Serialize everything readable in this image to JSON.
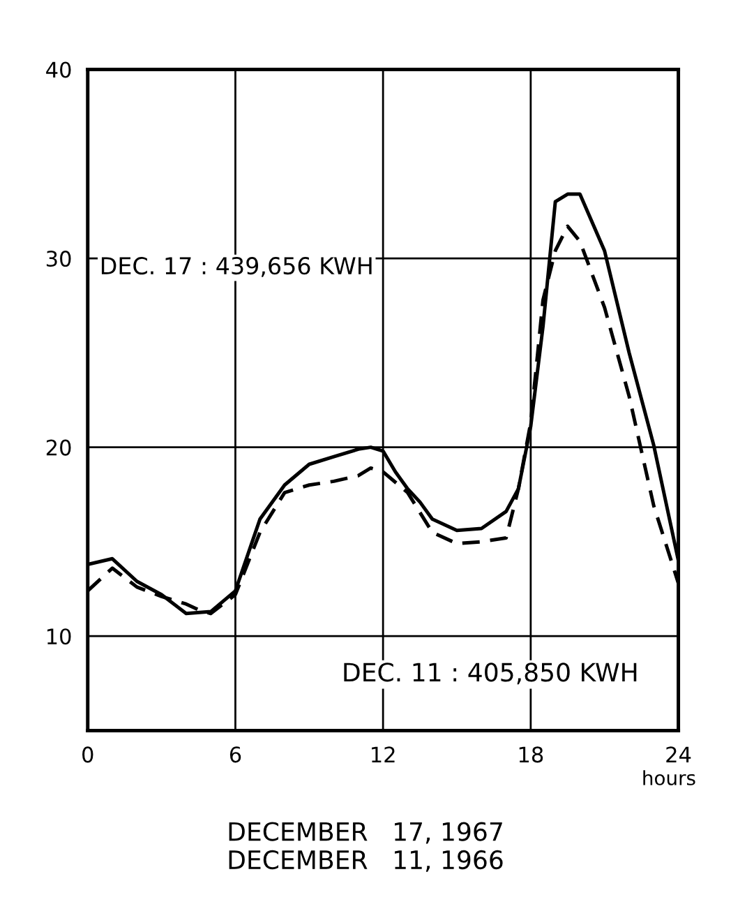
{
  "chart_data": {
    "type": "line",
    "xlabel": "hours",
    "xlim": [
      0,
      24
    ],
    "xticks": [
      0,
      6,
      12,
      18,
      24
    ],
    "ylim": [
      5,
      40
    ],
    "yticks": [
      10,
      20,
      30,
      40
    ],
    "grid": true,
    "marker": "none",
    "series": [
      {
        "color": "#000000",
        "line_style": "solid",
        "x": [
          0,
          1,
          2,
          3,
          4,
          5,
          6,
          7,
          8,
          9,
          10,
          11,
          11.5,
          12,
          12.5,
          13,
          13.5,
          14,
          15,
          16,
          17,
          17.5,
          18,
          18.5,
          19,
          19.5,
          20,
          21,
          22,
          23,
          24
        ],
        "values": [
          13.8,
          14.1,
          12.9,
          12.2,
          11.2,
          11.3,
          12.4,
          16.2,
          18.0,
          19.1,
          19.5,
          19.9,
          20.0,
          19.8,
          18.7,
          17.8,
          17.1,
          16.2,
          15.6,
          15.7,
          16.6,
          17.8,
          21.1,
          26.4,
          33.0,
          33.4,
          33.4,
          30.4,
          25.0,
          20.1,
          14.0
        ]
      },
      {
        "color": "#000000",
        "line_style": "dashed",
        "x": [
          0,
          1,
          2,
          3,
          4,
          4.5,
          5,
          6,
          7,
          8,
          9,
          10,
          11,
          11.5,
          12,
          13,
          14,
          15,
          16,
          17,
          17.5,
          18,
          18.5,
          19,
          19.5,
          20,
          21,
          22,
          23,
          24
        ],
        "values": [
          12.4,
          13.6,
          12.6,
          12.1,
          11.7,
          11.4,
          11.2,
          12.2,
          15.5,
          17.6,
          18.0,
          18.2,
          18.5,
          18.9,
          18.7,
          17.6,
          15.5,
          14.9,
          15.0,
          15.2,
          17.8,
          21.3,
          27.8,
          30.4,
          31.7,
          30.9,
          27.4,
          22.7,
          16.9,
          12.8
        ]
      }
    ],
    "annotations": [
      "DEC. 17 : 439,656 KWH",
      "DEC. 11 : 405,850 KWH",
      "DECEMBER   17, 1967\nDECEMBER   11, 1966"
    ]
  }
}
